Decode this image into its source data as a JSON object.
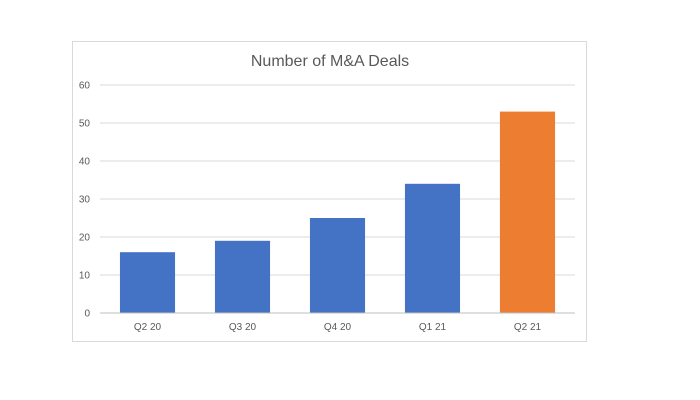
{
  "chart_data": {
    "type": "bar",
    "title": "Number of M&A Deals",
    "xlabel": "",
    "ylabel": "",
    "categories": [
      "Q2 20",
      "Q3 20",
      "Q4 20",
      "Q1 21",
      "Q2 21"
    ],
    "values": [
      16,
      19,
      25,
      34,
      53
    ],
    "ylim": [
      0,
      60
    ],
    "yticks": [
      "0",
      "10",
      "20",
      "30",
      "40",
      "50",
      "60"
    ],
    "grid": true,
    "legend": "none",
    "colors": {
      "default_bar": "#4472C4",
      "highlight_bar": "#ED7D31",
      "gridline": "#d9d9d9",
      "axis": "#bfbfbf",
      "text": "#595959"
    },
    "highlight_category": "Q2 21"
  }
}
